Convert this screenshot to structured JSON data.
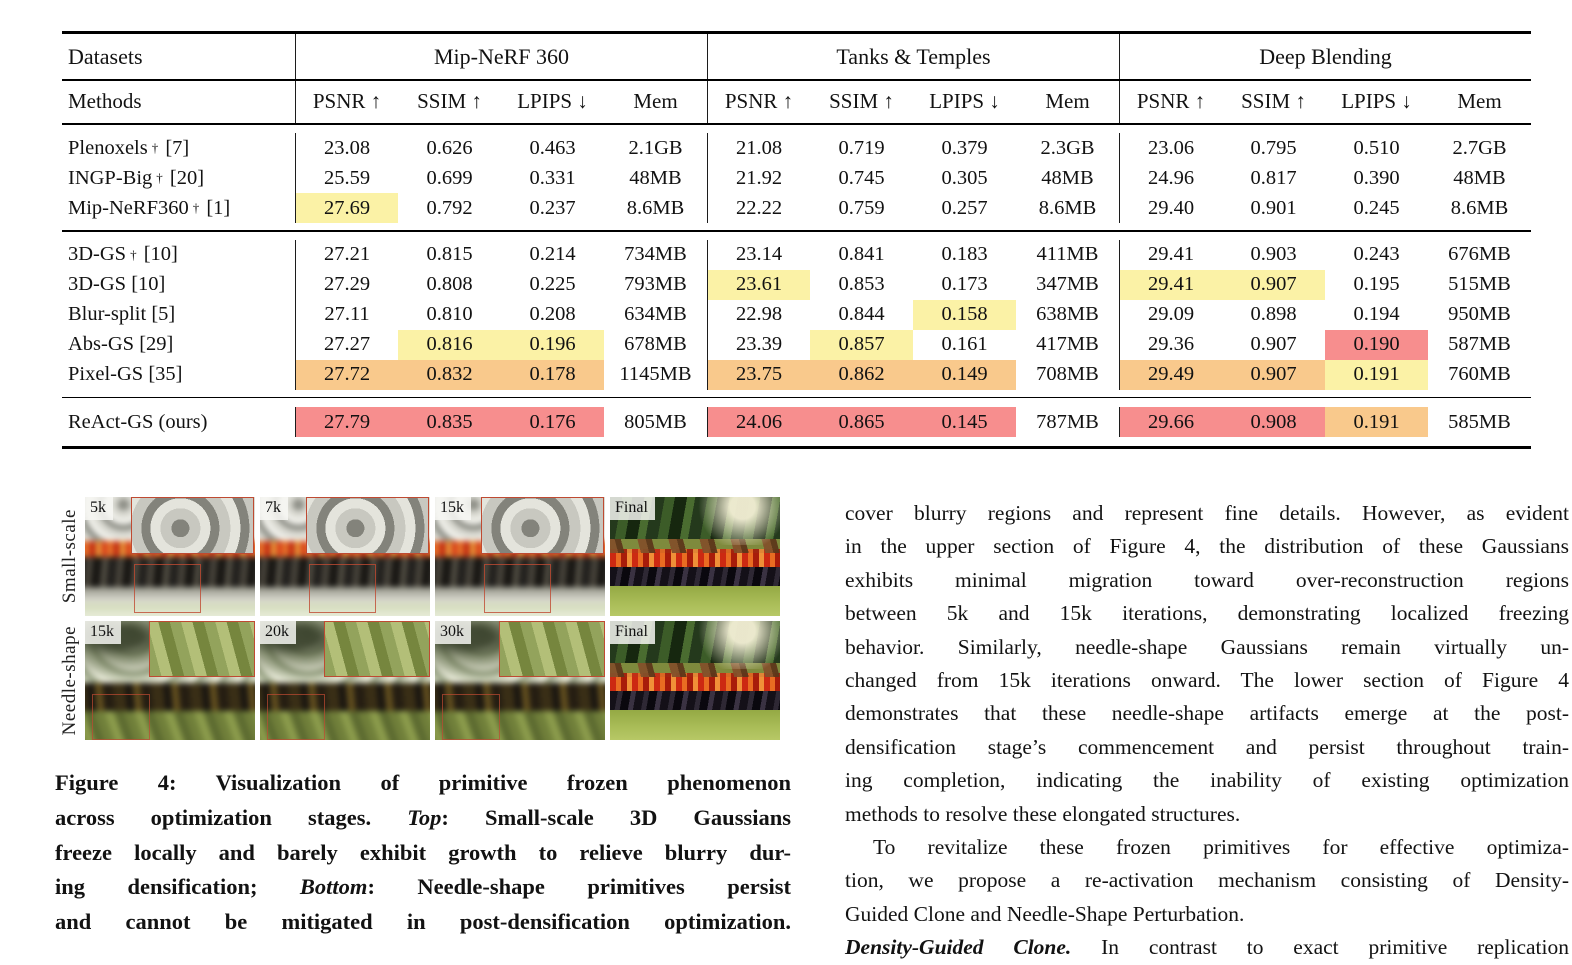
{
  "colors": {
    "yellow": "#FBF2A6",
    "orange": "#F9C98C",
    "red": "#F78E8E"
  },
  "table": {
    "corner_top": "Datasets",
    "corner_bottom": "Methods",
    "groups": [
      "Mip-NeRF 360",
      "Tanks & Temples",
      "Deep Blending"
    ],
    "metrics": [
      "PSNR ↑",
      "SSIM ↑",
      "LPIPS ↓",
      "Mem"
    ],
    "sections": [
      {
        "rows": [
          {
            "method": "Plenoxels",
            "dagger": "†",
            "ref": "[7]",
            "cells": [
              [
                "23.08",
                ""
              ],
              [
                "0.626",
                ""
              ],
              [
                "0.463",
                ""
              ],
              [
                "2.1GB",
                ""
              ],
              [
                "21.08",
                ""
              ],
              [
                "0.719",
                ""
              ],
              [
                "0.379",
                ""
              ],
              [
                "2.3GB",
                ""
              ],
              [
                "23.06",
                ""
              ],
              [
                "0.795",
                ""
              ],
              [
                "0.510",
                ""
              ],
              [
                "2.7GB",
                ""
              ]
            ]
          },
          {
            "method": "INGP-Big",
            "dagger": "†",
            "ref": "[20]",
            "cells": [
              [
                "25.59",
                ""
              ],
              [
                "0.699",
                ""
              ],
              [
                "0.331",
                ""
              ],
              [
                "48MB",
                ""
              ],
              [
                "21.92",
                ""
              ],
              [
                "0.745",
                ""
              ],
              [
                "0.305",
                ""
              ],
              [
                "48MB",
                ""
              ],
              [
                "24.96",
                ""
              ],
              [
                "0.817",
                ""
              ],
              [
                "0.390",
                ""
              ],
              [
                "48MB",
                ""
              ]
            ]
          },
          {
            "method": "Mip-NeRF360",
            "dagger": "†",
            "ref": "[1]",
            "cells": [
              [
                "27.69",
                "yellow"
              ],
              [
                "0.792",
                ""
              ],
              [
                "0.237",
                ""
              ],
              [
                "8.6MB",
                ""
              ],
              [
                "22.22",
                ""
              ],
              [
                "0.759",
                ""
              ],
              [
                "0.257",
                ""
              ],
              [
                "8.6MB",
                ""
              ],
              [
                "29.40",
                ""
              ],
              [
                "0.901",
                ""
              ],
              [
                "0.245",
                ""
              ],
              [
                "8.6MB",
                ""
              ]
            ]
          }
        ]
      },
      {
        "rows": [
          {
            "method": "3D-GS",
            "dagger": "†",
            "ref": "[10]",
            "cells": [
              [
                "27.21",
                ""
              ],
              [
                "0.815",
                ""
              ],
              [
                "0.214",
                ""
              ],
              [
                "734MB",
                ""
              ],
              [
                "23.14",
                ""
              ],
              [
                "0.841",
                ""
              ],
              [
                "0.183",
                ""
              ],
              [
                "411MB",
                ""
              ],
              [
                "29.41",
                ""
              ],
              [
                "0.903",
                ""
              ],
              [
                "0.243",
                ""
              ],
              [
                "676MB",
                ""
              ]
            ]
          },
          {
            "method": "3D-GS",
            "dagger": "",
            "ref": "[10]",
            "cells": [
              [
                "27.29",
                ""
              ],
              [
                "0.808",
                ""
              ],
              [
                "0.225",
                ""
              ],
              [
                "793MB",
                ""
              ],
              [
                "23.61",
                "yellow"
              ],
              [
                "0.853",
                ""
              ],
              [
                "0.173",
                ""
              ],
              [
                "347MB",
                ""
              ],
              [
                "29.41",
                "yellow"
              ],
              [
                "0.907",
                "yellow"
              ],
              [
                "0.195",
                ""
              ],
              [
                "515MB",
                ""
              ]
            ]
          },
          {
            "method": "Blur-split",
            "dagger": "",
            "ref": "[5]",
            "cells": [
              [
                "27.11",
                ""
              ],
              [
                "0.810",
                ""
              ],
              [
                "0.208",
                ""
              ],
              [
                "634MB",
                ""
              ],
              [
                "22.98",
                ""
              ],
              [
                "0.844",
                ""
              ],
              [
                "0.158",
                "yellow"
              ],
              [
                "638MB",
                ""
              ],
              [
                "29.09",
                ""
              ],
              [
                "0.898",
                ""
              ],
              [
                "0.194",
                ""
              ],
              [
                "950MB",
                ""
              ]
            ]
          },
          {
            "method": "Abs-GS",
            "dagger": "",
            "ref": "[29]",
            "cells": [
              [
                "27.27",
                ""
              ],
              [
                "0.816",
                "yellow"
              ],
              [
                "0.196",
                "yellow"
              ],
              [
                "678MB",
                ""
              ],
              [
                "23.39",
                ""
              ],
              [
                "0.857",
                "yellow"
              ],
              [
                "0.161",
                ""
              ],
              [
                "417MB",
                ""
              ],
              [
                "29.36",
                ""
              ],
              [
                "0.907",
                ""
              ],
              [
                "0.190",
                "red"
              ],
              [
                "587MB",
                ""
              ]
            ]
          },
          {
            "method": "Pixel-GS",
            "dagger": "",
            "ref": "[35]",
            "cells": [
              [
                "27.72",
                "orange"
              ],
              [
                "0.832",
                "orange"
              ],
              [
                "0.178",
                "orange"
              ],
              [
                "1145MB",
                ""
              ],
              [
                "23.75",
                "orange"
              ],
              [
                "0.862",
                "orange"
              ],
              [
                "0.149",
                "orange"
              ],
              [
                "708MB",
                ""
              ],
              [
                "29.49",
                "orange"
              ],
              [
                "0.907",
                "orange"
              ],
              [
                "0.191",
                "yellow"
              ],
              [
                "760MB",
                ""
              ]
            ]
          }
        ]
      },
      {
        "rows": [
          {
            "method": "ReAct-GS (ours)",
            "dagger": "",
            "ref": "",
            "cells": [
              [
                "27.79",
                "red"
              ],
              [
                "0.835",
                "red"
              ],
              [
                "0.176",
                "red"
              ],
              [
                "805MB",
                ""
              ],
              [
                "24.06",
                "red"
              ],
              [
                "0.865",
                "red"
              ],
              [
                "0.145",
                "red"
              ],
              [
                "787MB",
                ""
              ],
              [
                "29.66",
                "red"
              ],
              [
                "0.908",
                "red"
              ],
              [
                "0.191",
                "orange"
              ],
              [
                "585MB",
                ""
              ]
            ]
          }
        ]
      }
    ]
  },
  "figure": {
    "row_labels": [
      "Small-scale",
      "Needle-shape"
    ],
    "rows": [
      {
        "label": "Small-scale",
        "panels": [
          {
            "label": "5k",
            "kind": "p-small"
          },
          {
            "label": "7k",
            "kind": "p-small"
          },
          {
            "label": "15k",
            "kind": "p-small"
          },
          {
            "label": "Final",
            "kind": "p-final"
          }
        ]
      },
      {
        "label": "Needle-shape",
        "panels": [
          {
            "label": "15k",
            "kind": "p-needle"
          },
          {
            "label": "20k",
            "kind": "p-needle"
          },
          {
            "label": "30k",
            "kind": "p-needle"
          },
          {
            "label": "Final",
            "kind": "p-final"
          }
        ]
      }
    ]
  },
  "caption": {
    "lines": [
      [
        {
          "t": "Figure 4: Visualization of primitive frozen phenomenon",
          "s": "b"
        }
      ],
      [
        {
          "t": "across optimization stages. ",
          "s": "b"
        },
        {
          "t": "Top",
          "s": "bi"
        },
        {
          "t": ": Small-scale 3D Gaussians",
          "s": "b"
        }
      ],
      [
        {
          "t": "freeze locally and barely exhibit growth to relieve blurry dur-",
          "s": "b"
        }
      ],
      [
        {
          "t": "ing densification; ",
          "s": "b"
        },
        {
          "t": "Bottom",
          "s": "bi"
        },
        {
          "t": ": Needle-shape primitives persist",
          "s": "b"
        }
      ],
      [
        {
          "t": "and cannot be mitigated in post-densification optimization.",
          "s": "b"
        }
      ]
    ]
  },
  "body": {
    "lines": [
      {
        "t": "cover blurry regions and represent fine details. However, as evident",
        "j": true
      },
      {
        "t": "in the upper section of Figure 4, the distribution of these Gaussians",
        "j": true
      },
      {
        "t": "exhibits minimal migration toward over-reconstruction regions",
        "j": true
      },
      {
        "t": "between 5k and 15k iterations, demonstrating localized freezing",
        "j": true
      },
      {
        "t": "behavior. Similarly, needle-shape Gaussians remain virtually un-",
        "j": true
      },
      {
        "t": "changed from 15k iterations onward. The lower section of Figure 4",
        "j": true
      },
      {
        "t": "demonstrates that these needle-shape artifacts emerge at the post-",
        "j": true
      },
      {
        "t": "densification stage’s commencement and persist throughout train-",
        "j": true
      },
      {
        "t": "ing completion, indicating the inability of existing optimization",
        "j": true
      },
      {
        "t": "methods to resolve these elongated structures.",
        "j": false
      },
      {
        "t": "To revitalize these frozen primitives for effective optimiza-",
        "j": true,
        "indent": true
      },
      {
        "t": "tion, we propose a re-activation mechanism consisting of Density-",
        "j": true
      },
      {
        "t": "Guided Clone and Needle-Shape Perturbation.",
        "j": false
      },
      {
        "lead": "Density-Guided Clone.",
        "t": " In contrast to exact primitive replication",
        "j": true
      }
    ]
  }
}
